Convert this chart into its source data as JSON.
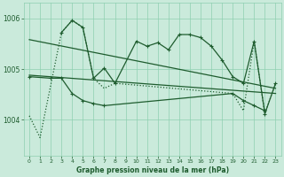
{
  "title": "Graphe pression niveau de la mer (hPa)",
  "bg_color": "#caeadb",
  "grid_color": "#8ecfb0",
  "line_color": "#1e5c2e",
  "xlim": [
    -0.5,
    23.5
  ],
  "ylim": [
    1003.3,
    1006.3
  ],
  "yticks": [
    1004,
    1005,
    1006
  ],
  "xtick_labels": [
    "0",
    "1",
    "2",
    "3",
    "4",
    "5",
    "6",
    "7",
    "8",
    "9",
    "10",
    "11",
    "12",
    "13",
    "14",
    "15",
    "16",
    "17",
    "18",
    "19",
    "20",
    "21",
    "22",
    "23"
  ],
  "hours": [
    0,
    1,
    2,
    3,
    4,
    5,
    6,
    7,
    8,
    9,
    10,
    11,
    12,
    13,
    14,
    15,
    16,
    17,
    18,
    19,
    20,
    21,
    22,
    23
  ],
  "series_upper_x": [
    3,
    4,
    5,
    6,
    7,
    8,
    10,
    11,
    12,
    13,
    14,
    15,
    16,
    17,
    18,
    19,
    20,
    21,
    22,
    23
  ],
  "series_upper_y": [
    1005.72,
    1005.96,
    1005.82,
    1004.82,
    1005.02,
    1004.72,
    1005.55,
    1005.45,
    1005.52,
    1005.38,
    1005.68,
    1005.68,
    1005.62,
    1005.45,
    1005.18,
    1004.85,
    1004.72,
    1005.55,
    1004.12,
    1004.72
  ],
  "series_lower_x": [
    0,
    2,
    3,
    4,
    5,
    6,
    7,
    19,
    20,
    21,
    22
  ],
  "series_lower_y": [
    1004.85,
    1004.82,
    1004.82,
    1004.52,
    1004.38,
    1004.32,
    1004.28,
    1004.52,
    1004.38,
    1004.28,
    1004.18
  ],
  "dotted_x": [
    0,
    1,
    3,
    4,
    5,
    6,
    7,
    8,
    19,
    20,
    21,
    22,
    23
  ],
  "dotted_y": [
    1004.08,
    1003.65,
    1005.72,
    1005.96,
    1005.82,
    1004.82,
    1004.62,
    1004.72,
    1004.52,
    1004.18,
    1005.55,
    1004.12,
    1004.72
  ],
  "trend1_x": [
    0,
    23
  ],
  "trend1_y": [
    1004.88,
    1004.52
  ],
  "trend2_x": [
    0,
    23
  ],
  "trend2_y": [
    1005.58,
    1004.62
  ]
}
